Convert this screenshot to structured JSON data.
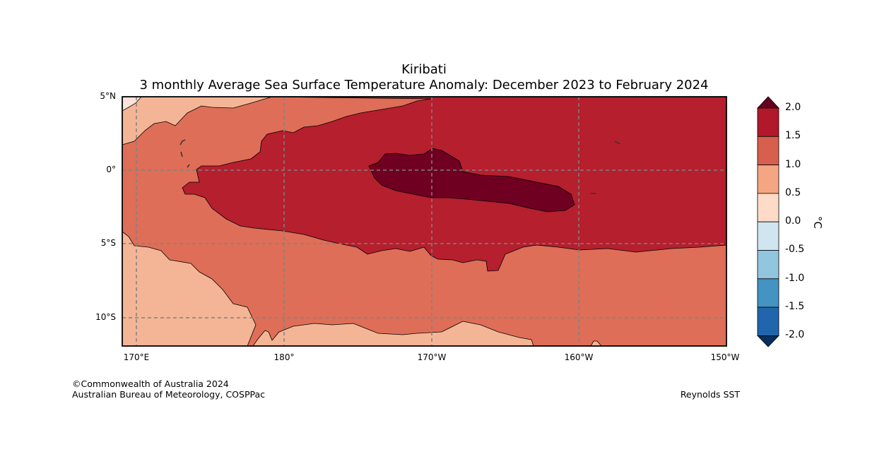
{
  "title": "Kiribati",
  "subtitle": "3 monthly Average Sea Surface Temperature Anomaly: December 2023 to February 2024",
  "map": {
    "lat_labels": [
      "5°N",
      "0°",
      "5°S",
      "10°S"
    ],
    "lon_labels": [
      "170°E",
      "180°",
      "170°W",
      "160°W",
      "150°W"
    ]
  },
  "colorbar": {
    "unit": "°C",
    "tick_labels": [
      "2.0",
      "1.5",
      "1.0",
      "0.5",
      "0.0",
      "-0.5",
      "-1.0",
      "-1.5",
      "-2.0"
    ],
    "colors": [
      "#67001f",
      "#b2182b",
      "#d6604d",
      "#f4a582",
      "#fddbc7",
      "#d1e5f0",
      "#92c5de",
      "#4393c3",
      "#2166ac",
      "#053061"
    ]
  },
  "footer": {
    "copyright": "©Commonwealth of Australia 2024",
    "agency": "Australian Bureau of Meteorology, COSPPac",
    "source": "Reynolds SST"
  }
}
